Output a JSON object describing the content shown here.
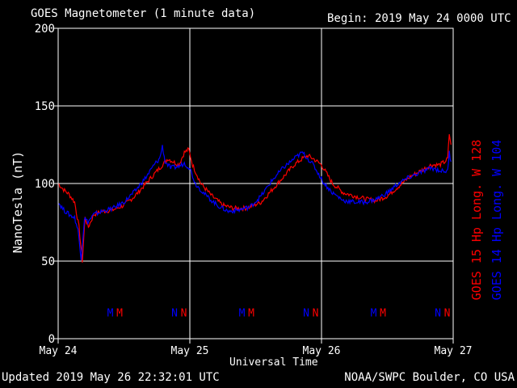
{
  "header": {
    "title": "GOES Magnetometer (1 minute data)",
    "begin": "Begin:  2019 May 24 0000 UTC"
  },
  "footer": {
    "updated": "Updated 2019 May 26 22:32:01 UTC",
    "credit": "NOAA/SWPC Boulder, CO USA"
  },
  "colors": {
    "goes15": "#ff0000",
    "goes14": "#0000ff",
    "grid": "#ffffff",
    "background": "#000000"
  },
  "chart_data": {
    "type": "line",
    "xlabel": "Universal Time",
    "ylabel": "NanoTesla (nT)",
    "xlim": [
      0,
      72
    ],
    "ylim": [
      0,
      200
    ],
    "x_units": "hours since 2019 May 24 0000 UTC",
    "x_ticks": [
      {
        "x": 0,
        "label": "May 24"
      },
      {
        "x": 24,
        "label": "May 25"
      },
      {
        "x": 48,
        "label": "May 26"
      },
      {
        "x": 72,
        "label": "May 27"
      }
    ],
    "y_ticks": [
      {
        "y": 0,
        "label": "0"
      },
      {
        "y": 50,
        "label": "50"
      },
      {
        "y": 100,
        "label": "100"
      },
      {
        "y": 150,
        "label": "150"
      },
      {
        "y": 200,
        "label": "200"
      }
    ],
    "grid": true,
    "legend": "right, rotated",
    "series": [
      {
        "name": "GOES 15 Hp  Long. W 128",
        "color": "#ff0000",
        "points": [
          [
            0,
            100
          ],
          [
            1,
            96
          ],
          [
            2,
            93
          ],
          [
            3,
            88
          ],
          [
            3.8,
            72
          ],
          [
            4.4,
            50
          ],
          [
            4.9,
            78
          ],
          [
            5.5,
            72
          ],
          [
            6.5,
            80
          ],
          [
            8,
            82
          ],
          [
            10,
            83
          ],
          [
            12,
            86
          ],
          [
            14,
            92
          ],
          [
            16,
            100
          ],
          [
            17.5,
            106
          ],
          [
            19,
            112
          ],
          [
            20,
            116
          ],
          [
            21,
            114
          ],
          [
            22,
            112
          ],
          [
            23,
            120
          ],
          [
            23.8,
            122
          ],
          [
            24.5,
            112
          ],
          [
            26,
            100
          ],
          [
            28,
            92
          ],
          [
            30,
            86
          ],
          [
            32,
            84
          ],
          [
            34,
            84
          ],
          [
            35,
            85
          ],
          [
            37,
            88
          ],
          [
            39,
            96
          ],
          [
            41,
            104
          ],
          [
            43,
            112
          ],
          [
            44.5,
            116
          ],
          [
            45.5,
            118
          ],
          [
            46.5,
            116
          ],
          [
            48,
            112
          ],
          [
            49,
            106
          ],
          [
            50,
            100
          ],
          [
            52,
            94
          ],
          [
            54,
            92
          ],
          [
            56,
            90
          ],
          [
            58,
            89
          ],
          [
            60,
            92
          ],
          [
            62,
            98
          ],
          [
            64,
            104
          ],
          [
            66,
            108
          ],
          [
            68,
            112
          ],
          [
            69.5,
            112
          ],
          [
            70.5,
            114
          ],
          [
            71,
            116
          ],
          [
            71.3,
            132
          ],
          [
            71.6,
            125
          ]
        ]
      },
      {
        "name": "GOES 14 Hp  Long. W 104",
        "color": "#0000ff",
        "points": [
          [
            0,
            88
          ],
          [
            1,
            83
          ],
          [
            2,
            80
          ],
          [
            3,
            78
          ],
          [
            3.6,
            70
          ],
          [
            4.2,
            52
          ],
          [
            4.8,
            78
          ],
          [
            5.4,
            75
          ],
          [
            6.5,
            80
          ],
          [
            8,
            82
          ],
          [
            10,
            84
          ],
          [
            12,
            88
          ],
          [
            14,
            95
          ],
          [
            16,
            104
          ],
          [
            17.5,
            112
          ],
          [
            18.5,
            116
          ],
          [
            19,
            124
          ],
          [
            19.5,
            114
          ],
          [
            20.5,
            110
          ],
          [
            22,
            111
          ],
          [
            23,
            113
          ],
          [
            24,
            110
          ],
          [
            25,
            100
          ],
          [
            27,
            92
          ],
          [
            29,
            86
          ],
          [
            31,
            82
          ],
          [
            33,
            83
          ],
          [
            35,
            85
          ],
          [
            37,
            92
          ],
          [
            39,
            102
          ],
          [
            41,
            110
          ],
          [
            43,
            116
          ],
          [
            44.5,
            120
          ],
          [
            45.5,
            116
          ],
          [
            46.5,
            112
          ],
          [
            47.5,
            106
          ],
          [
            48.5,
            100
          ],
          [
            50,
            94
          ],
          [
            52,
            89
          ],
          [
            54,
            88
          ],
          [
            56,
            88
          ],
          [
            58,
            90
          ],
          [
            60,
            94
          ],
          [
            62,
            100
          ],
          [
            64,
            104
          ],
          [
            66,
            107
          ],
          [
            68,
            110
          ],
          [
            70,
            108
          ],
          [
            71,
            108
          ],
          [
            71.3,
            120
          ],
          [
            71.6,
            114
          ]
        ]
      }
    ],
    "annotations": [
      {
        "text": "M",
        "x": 9.5,
        "color": "#0000ff"
      },
      {
        "text": "M",
        "x": 11.2,
        "color": "#ff0000"
      },
      {
        "text": "N",
        "x": 21.2,
        "color": "#0000ff"
      },
      {
        "text": "N",
        "x": 22.9,
        "color": "#ff0000"
      },
      {
        "text": "M",
        "x": 33.5,
        "color": "#0000ff"
      },
      {
        "text": "M",
        "x": 35.2,
        "color": "#ff0000"
      },
      {
        "text": "N",
        "x": 45.2,
        "color": "#0000ff"
      },
      {
        "text": "N",
        "x": 46.9,
        "color": "#ff0000"
      },
      {
        "text": "M",
        "x": 57.5,
        "color": "#0000ff"
      },
      {
        "text": "M",
        "x": 59.2,
        "color": "#ff0000"
      },
      {
        "text": "N",
        "x": 69.2,
        "color": "#0000ff"
      },
      {
        "text": "N",
        "x": 70.9,
        "color": "#ff0000"
      }
    ],
    "annotation_y": 17
  }
}
